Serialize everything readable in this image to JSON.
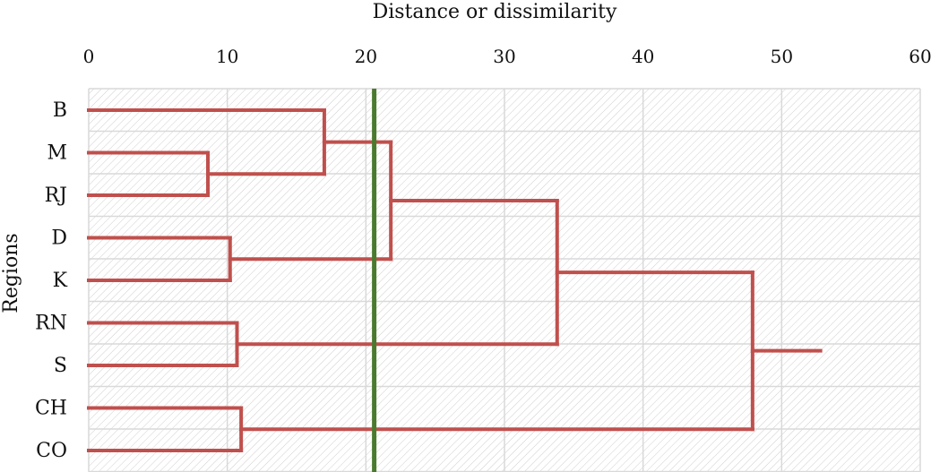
{
  "chart_data": {
    "type": "dendrogram",
    "title": "",
    "xlabel": "Distance or dissimilarity",
    "ylabel": "Regions",
    "xlim": [
      0,
      60
    ],
    "xticks": [
      "0",
      "10",
      "20",
      "30",
      "40",
      "50",
      "60"
    ],
    "grid": true,
    "categories": [
      "B",
      "M",
      "RJ",
      "D",
      "K",
      "RN",
      "S",
      "CH",
      "CO"
    ],
    "merges": [
      {
        "left": "M",
        "right": "RJ",
        "distance": 8.6
      },
      {
        "left": "D",
        "right": "K",
        "distance": 10.2
      },
      {
        "left": "RN",
        "right": "S",
        "distance": 10.7
      },
      {
        "left": "CH",
        "right": "CO",
        "distance": 11.0
      },
      {
        "left": "B",
        "right": "M+RJ",
        "distance": 17.0
      },
      {
        "left": "B+M+RJ",
        "right": "D+K",
        "distance": 21.8
      },
      {
        "left": "B+M+RJ+D+K",
        "right": "RN+S",
        "distance": 33.8
      },
      {
        "left": "B+M+RJ+D+K+RN+S",
        "right": "CH+CO",
        "distance": 47.9
      }
    ],
    "root_tail_distance": 52.8,
    "cutoff_line": {
      "x": 20.6,
      "color": "#4a7a2e"
    },
    "colors": {
      "branches": "#c0504d",
      "cutoff": "#4a7a2e",
      "grid": "#d9d9d9"
    }
  }
}
